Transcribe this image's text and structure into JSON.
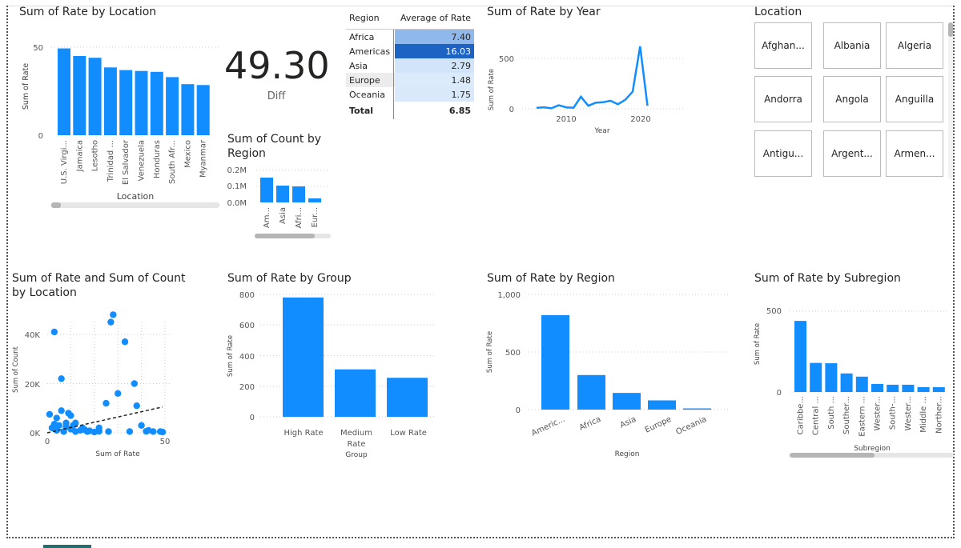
{
  "location_chart": {
    "title": "Sum of Rate by Location",
    "xlabel": "Location",
    "ylabel": "Sum of Rate",
    "yticks": [
      "50",
      "0"
    ]
  },
  "kpi": {
    "value": "49.30",
    "label": "Diff"
  },
  "region_table": {
    "headers": [
      "Region",
      "Average of Rate"
    ],
    "rows": [
      {
        "region": "Africa",
        "value": "7.40",
        "color": "#8fb8ec"
      },
      {
        "region": "Americas",
        "value": "16.03",
        "color": "#1c63c4"
      },
      {
        "region": "Asia",
        "value": "2.79",
        "color": "#d2e4fa"
      },
      {
        "region": "Europe",
        "value": "1.48",
        "color": "#dcebfc"
      },
      {
        "region": "Oceania",
        "value": "1.75",
        "color": "#d9e9fb"
      }
    ],
    "total_label": "Total",
    "total_value": "6.85"
  },
  "year_chart": {
    "title": "Sum of Rate by Year",
    "xlabel": "Year",
    "ylabel": "Sum of Rate",
    "xticks": [
      "2010",
      "2020"
    ],
    "yticks": [
      "500",
      "0"
    ]
  },
  "location_slicer": {
    "title": "Location",
    "items": [
      "Afghan...",
      "Albania",
      "Algeria",
      "Andorra",
      "Angola",
      "Anguilla",
      "Antigu...",
      "Argent...",
      "Armen..."
    ]
  },
  "count_region_chart": {
    "title_line1": "Sum of Count by",
    "title_line2": "Region",
    "yticks": [
      "0.2M",
      "0.1M",
      "0.0M"
    ]
  },
  "scatter_chart": {
    "title_line1": "Sum of Rate and Sum of Count",
    "title_line2": "by Location",
    "xlabel": "Sum of Rate",
    "ylabel": "Sum of Count",
    "xticks": [
      "0",
      "50"
    ],
    "yticks": [
      "40K",
      "20K",
      "0K"
    ]
  },
  "group_chart": {
    "title": "Sum of Rate by Group",
    "xlabel": "Group",
    "ylabel": "Sum of Rate",
    "yticks": [
      "800",
      "600",
      "400",
      "200",
      "0"
    ],
    "cat_labels": [
      "High Rate",
      "Medium",
      "Rate",
      "Low Rate"
    ]
  },
  "region_chart": {
    "title": "Sum of Rate by Region",
    "xlabel": "Region",
    "ylabel": "Sum of Rate",
    "yticks": [
      "1,000",
      "500",
      "0"
    ]
  },
  "subregion_chart": {
    "title": "Sum of Rate by Subregion",
    "xlabel": "Subregion",
    "ylabel": "Sum of Rate",
    "yticks": [
      "500",
      "0"
    ]
  },
  "colors": {
    "bar": "#118dff",
    "dark_bar": "#1c63c4",
    "grid": "#d0d0d0"
  },
  "chart_data": [
    {
      "type": "bar",
      "title": "Sum of Rate by Location",
      "xlabel": "Location",
      "ylabel": "Sum of Rate",
      "categories": [
        "U.S. Virgi...",
        "Jamaica",
        "Lesotho",
        "Trinidad ...",
        "El Salvador",
        "Venezuela",
        "Honduras",
        "South Afr...",
        "Mexico",
        "Myanmar"
      ],
      "values": [
        49.3,
        45,
        44,
        38.5,
        37,
        36.5,
        36,
        33,
        29,
        28.5
      ],
      "ylim": [
        0,
        55
      ]
    },
    {
      "type": "line",
      "title": "Sum of Rate by Year",
      "xlabel": "Year",
      "ylabel": "Sum of Rate",
      "x": [
        2006,
        2007,
        2008,
        2009,
        2010,
        2011,
        2012,
        2013,
        2014,
        2015,
        2016,
        2017,
        2018,
        2019,
        2020,
        2021
      ],
      "values": [
        10,
        15,
        5,
        35,
        15,
        10,
        120,
        30,
        60,
        65,
        80,
        45,
        90,
        170,
        620,
        30
      ],
      "ylim": [
        0,
        700
      ]
    },
    {
      "type": "bar",
      "title": "Sum of Count by Region",
      "categories": [
        "Am...",
        "Asia",
        "Afri...",
        "Eur..."
      ],
      "values": [
        0.155,
        0.105,
        0.1,
        0.025
      ],
      "ylim": [
        0,
        0.2
      ]
    },
    {
      "type": "scatter",
      "title": "Sum of Rate and Sum of Count by Location",
      "xlabel": "Sum of Rate",
      "ylabel": "Sum of Count",
      "x": [
        2,
        3,
        4,
        5,
        6,
        7,
        8,
        9,
        10,
        11,
        12,
        14,
        15,
        17,
        18,
        20,
        22,
        25,
        27,
        28,
        30,
        33,
        35,
        37,
        38,
        40,
        43,
        45,
        49,
        1,
        3,
        6,
        8,
        12,
        16,
        4,
        10,
        22,
        26,
        42,
        48
      ],
      "y": [
        2000,
        41000,
        1000,
        3000,
        22000,
        500,
        4000,
        8000,
        1500,
        3000,
        500,
        1000,
        2000,
        500,
        800,
        300,
        600,
        12000,
        45000,
        48000,
        16000,
        37000,
        500,
        20000,
        11000,
        3000,
        1000,
        500,
        300,
        7500,
        3500,
        9000,
        2500,
        4000,
        1200,
        6000,
        7000,
        2000,
        500,
        600,
        500
      ],
      "trendline": [
        [
          0,
          0
        ],
        [
          49,
          10500
        ]
      ],
      "xlim": [
        0,
        50
      ],
      "ylim": [
        0,
        50000
      ]
    },
    {
      "type": "bar",
      "title": "Sum of Rate by Group",
      "xlabel": "Group",
      "ylabel": "Sum of Rate",
      "categories": [
        "High Rate",
        "Medium Rate",
        "Low Rate"
      ],
      "values": [
        780,
        310,
        255
      ],
      "ylim": [
        0,
        800
      ]
    },
    {
      "type": "bar",
      "title": "Sum of Rate by Region",
      "xlabel": "Region",
      "ylabel": "Sum of Rate",
      "categories": [
        "Americ...",
        "Africa",
        "Asia",
        "Europe",
        "Oceania"
      ],
      "values": [
        820,
        300,
        145,
        80,
        10
      ],
      "ylim": [
        0,
        1000
      ]
    },
    {
      "type": "bar",
      "title": "Sum of Rate by Subregion",
      "xlabel": "Subregion",
      "ylabel": "Sum of Rate",
      "categories": [
        "Caribbe...",
        "Central ...",
        "South ...",
        "Souther...",
        "Eastern ...",
        "Wester...",
        "South-...",
        "Wester...",
        "Middle ...",
        "Norther..."
      ],
      "values": [
        440,
        180,
        178,
        115,
        95,
        50,
        45,
        45,
        30,
        30
      ],
      "ylim": [
        0,
        500
      ]
    }
  ]
}
